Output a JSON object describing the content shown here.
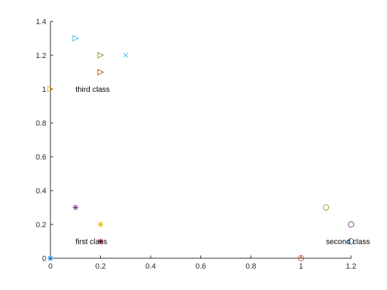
{
  "chart_data": {
    "type": "scatter",
    "title": "",
    "xlabel": "",
    "ylabel": "",
    "xlim": [
      0,
      1.2
    ],
    "ylim": [
      0,
      1.4
    ],
    "xticks": [
      "0",
      "0.2",
      "0.4",
      "0.6",
      "0.8",
      "1",
      "1.2"
    ],
    "yticks": [
      "0",
      "0.2",
      "0.4",
      "0.6",
      "0.8",
      "1",
      "1.2",
      "1.4"
    ],
    "grid": false,
    "legend": "none",
    "points": [
      {
        "x": 0.0,
        "y": 0.0,
        "marker": "asterisk",
        "color": "#0072BD"
      },
      {
        "x": 0.1,
        "y": 0.3,
        "marker": "asterisk",
        "color": "#7E2F8E"
      },
      {
        "x": 0.2,
        "y": 0.2,
        "marker": "asterisk",
        "color": "#EDB120"
      },
      {
        "x": 0.2,
        "y": 0.1,
        "marker": "asterisk",
        "color": "#A2142F"
      },
      {
        "x": 1.0,
        "y": 0.0,
        "marker": "circle",
        "color": "#D95319"
      },
      {
        "x": 1.1,
        "y": 0.3,
        "marker": "circle",
        "color": "#77AC30"
      },
      {
        "x": 1.2,
        "y": 0.2,
        "marker": "circle",
        "color": "#7E2F8E"
      },
      {
        "x": 1.2,
        "y": 0.1,
        "marker": "circle",
        "color": "#0072BD"
      },
      {
        "x": 0.0,
        "y": 1.0,
        "marker": "triangle-right",
        "color": "#EDB120"
      },
      {
        "x": 0.1,
        "y": 1.3,
        "marker": "triangle-right",
        "color": "#4DBEEE"
      },
      {
        "x": 0.2,
        "y": 1.2,
        "marker": "triangle-right",
        "color": "#77AC30"
      },
      {
        "x": 0.2,
        "y": 1.1,
        "marker": "triangle-right",
        "color": "#D95319"
      },
      {
        "x": 0.3,
        "y": 1.2,
        "marker": "cross",
        "color": "#4DBEEE"
      }
    ],
    "annotations": [
      {
        "text": "first class",
        "x": 0.1,
        "y": 0.1
      },
      {
        "text": "second class",
        "x": 1.1,
        "y": 0.1
      },
      {
        "text": "third class",
        "x": 0.1,
        "y": 1.0
      }
    ]
  }
}
